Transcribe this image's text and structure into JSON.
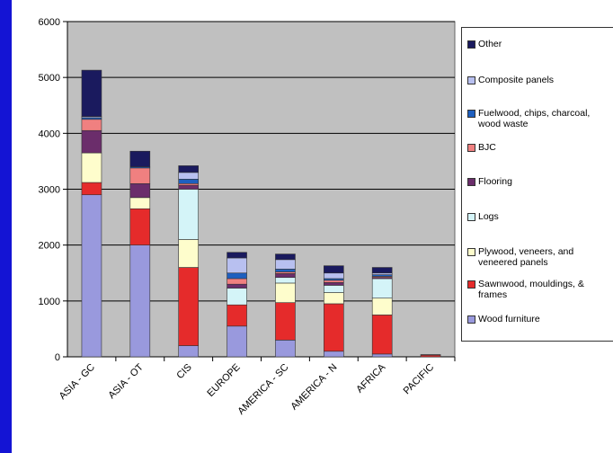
{
  "chart_data": {
    "type": "bar",
    "stacked": true,
    "categories": [
      "ASIA - GC",
      "ASIA - OT",
      "CIS",
      "EUROPE",
      "AMERICA - SC",
      "AMERICA - N",
      "AFRICA",
      "PACIFIC"
    ],
    "ylim": [
      0,
      6000
    ],
    "yticks": [
      "0",
      "1000",
      "2000",
      "3000",
      "4000",
      "5000",
      "6000"
    ],
    "grid": true,
    "legend_position": "right",
    "plot_background": "#c0c0c0",
    "series": [
      {
        "name": "Wood furniture",
        "color": "#9999dd",
        "values": [
          2900,
          2000,
          200,
          550,
          300,
          100,
          50,
          0
        ]
      },
      {
        "name": "Sawnwood, mouldings, & frames",
        "color": "#e52b2b",
        "values": [
          220,
          650,
          1400,
          380,
          670,
          850,
          700,
          30
        ]
      },
      {
        "name": "Plywood, veneers, and veneered panels",
        "color": "#fefdcc",
        "values": [
          530,
          200,
          500,
          0,
          350,
          200,
          300,
          0
        ]
      },
      {
        "name": "Logs",
        "color": "#d4f4f8",
        "values": [
          0,
          0,
          900,
          300,
          100,
          130,
          350,
          0
        ]
      },
      {
        "name": "Flooring",
        "color": "#6b2d6b",
        "values": [
          400,
          250,
          70,
          70,
          70,
          50,
          20,
          0
        ]
      },
      {
        "name": "BJC",
        "color": "#f08080",
        "values": [
          200,
          280,
          30,
          100,
          30,
          40,
          20,
          0
        ]
      },
      {
        "name": "Fuelwood, chips, charcoal, wood waste",
        "color": "#1e5fbf",
        "values": [
          30,
          20,
          80,
          100,
          50,
          30,
          30,
          0
        ]
      },
      {
        "name": "Composite panels",
        "color": "#b8c0f0",
        "values": [
          20,
          0,
          120,
          270,
          170,
          100,
          30,
          0
        ]
      },
      {
        "name": "Other",
        "color": "#1a1a5e",
        "values": [
          830,
          280,
          120,
          100,
          100,
          130,
          100,
          10
        ]
      }
    ]
  },
  "legend": {
    "items": [
      {
        "label": "Other",
        "color": "#1a1a5e"
      },
      {
        "label": "Composite panels",
        "color": "#b8c0f0"
      },
      {
        "label": "Fuelwood, chips, charcoal,\nwood waste",
        "color": "#1e5fbf"
      },
      {
        "label": "BJC",
        "color": "#f08080"
      },
      {
        "label": "Flooring",
        "color": "#6b2d6b"
      },
      {
        "label": "Logs",
        "color": "#d4f4f8"
      },
      {
        "label": "Plywood, veneers, and\nveneered panels",
        "color": "#fefdcc"
      },
      {
        "label": "Sawnwood, mouldings, &\nframes",
        "color": "#e52b2b"
      },
      {
        "label": "Wood furniture",
        "color": "#9999dd"
      }
    ]
  }
}
